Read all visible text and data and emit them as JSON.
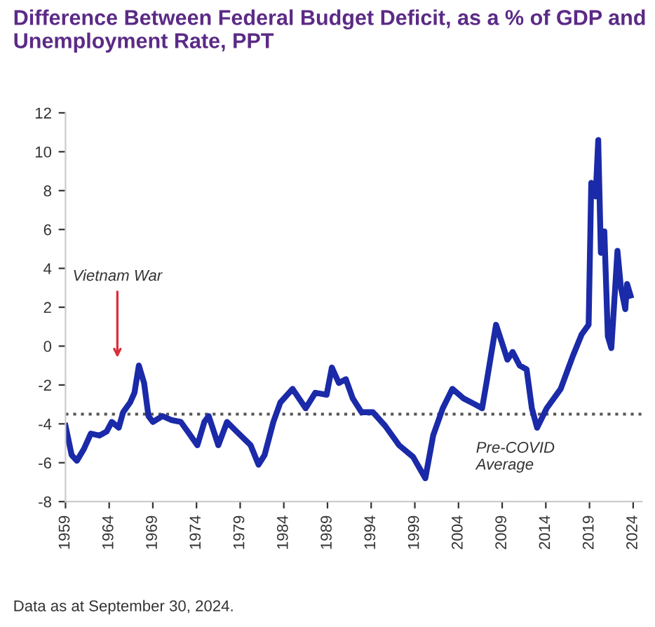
{
  "chart_data": {
    "type": "line",
    "title": "Difference Between Federal Budget Deficit, as a % of GDP and Unemployment Rate, PPT",
    "annotations": [
      "Vietnam War",
      "Data as at September 30, 2024."
    ],
    "series": [
      {
        "color": "#1a2aa8",
        "x": [
          1959.0,
          1959.7,
          1960.3,
          1961.1,
          1961.9,
          1962.9,
          1963.7,
          1964.3,
          1965.1,
          1965.6,
          1966.4,
          1966.9,
          1967.4,
          1968.0,
          1968.5,
          1969.0,
          1970.1,
          1971.1,
          1972.2,
          1973.0,
          1974.1,
          1974.9,
          1975.4,
          1976.5,
          1977.5,
          1978.6,
          1980.2,
          1981.1,
          1981.8,
          1982.8,
          1983.6,
          1985.0,
          1986.5,
          1987.6,
          1988.9,
          1989.5,
          1990.3,
          1991.1,
          1991.9,
          1992.9,
          1994.2,
          1995.6,
          1997.2,
          1998.8,
          2000.2,
          2001.1,
          2002.2,
          2003.3,
          2004.6,
          2005.9,
          2006.7,
          2007.2,
          2008.3,
          2009.1,
          2009.6,
          2010.2,
          2011.0,
          2011.8,
          2012.4,
          2013.0,
          2014.1,
          2015.7,
          2017.1,
          2018.1,
          2018.9,
          2019.2,
          2019.7,
          2020.0,
          2020.3,
          2020.7,
          2021.1,
          2021.5,
          2021.8,
          2022.2,
          2022.6,
          2023.1,
          2023.3,
          2023.7
        ],
        "values": [
          -4.1,
          -5.6,
          -5.9,
          -5.3,
          -4.5,
          -4.6,
          -4.4,
          -3.9,
          -4.2,
          -3.4,
          -2.9,
          -2.4,
          -1.0,
          -1.9,
          -3.6,
          -3.9,
          -3.6,
          -3.8,
          -3.9,
          -4.4,
          -5.1,
          -3.9,
          -3.6,
          -5.1,
          -3.9,
          -4.4,
          -5.1,
          -6.1,
          -5.6,
          -3.9,
          -2.9,
          -2.2,
          -3.2,
          -2.4,
          -2.5,
          -1.1,
          -1.9,
          -1.7,
          -2.7,
          -3.4,
          -3.4,
          -4.1,
          -5.1,
          -5.7,
          -6.8,
          -4.6,
          -3.2,
          -2.2,
          -2.7,
          -3.0,
          -3.2,
          -1.9,
          1.1,
          0.0,
          -0.7,
          -0.3,
          -1.0,
          -1.2,
          -3.2,
          -4.2,
          -3.2,
          -2.2,
          -0.5,
          0.6,
          1.1,
          8.4,
          7.7,
          10.6,
          4.8,
          5.9,
          0.5,
          -0.1,
          2.0,
          4.9,
          3.0,
          1.9,
          3.2,
          2.6
        ]
      }
    ],
    "ref_lines": [
      {
        "axis": "y",
        "value": -3.5,
        "label": "Pre-COVID\nAverage",
        "color": "#555555",
        "line_style": "dotted"
      }
    ],
    "xlim": [
      1959,
      2025
    ],
    "xticks": [
      1959,
      1964,
      1969,
      1974,
      1979,
      1984,
      1989,
      1994,
      1999,
      2004,
      2009,
      2014,
      2019,
      2024
    ],
    "ylim": [
      -8,
      12
    ],
    "yticks": [
      -8,
      -6,
      -4,
      -2,
      0,
      2,
      4,
      6,
      8,
      10,
      12
    ],
    "grid": false,
    "legend": false
  }
}
